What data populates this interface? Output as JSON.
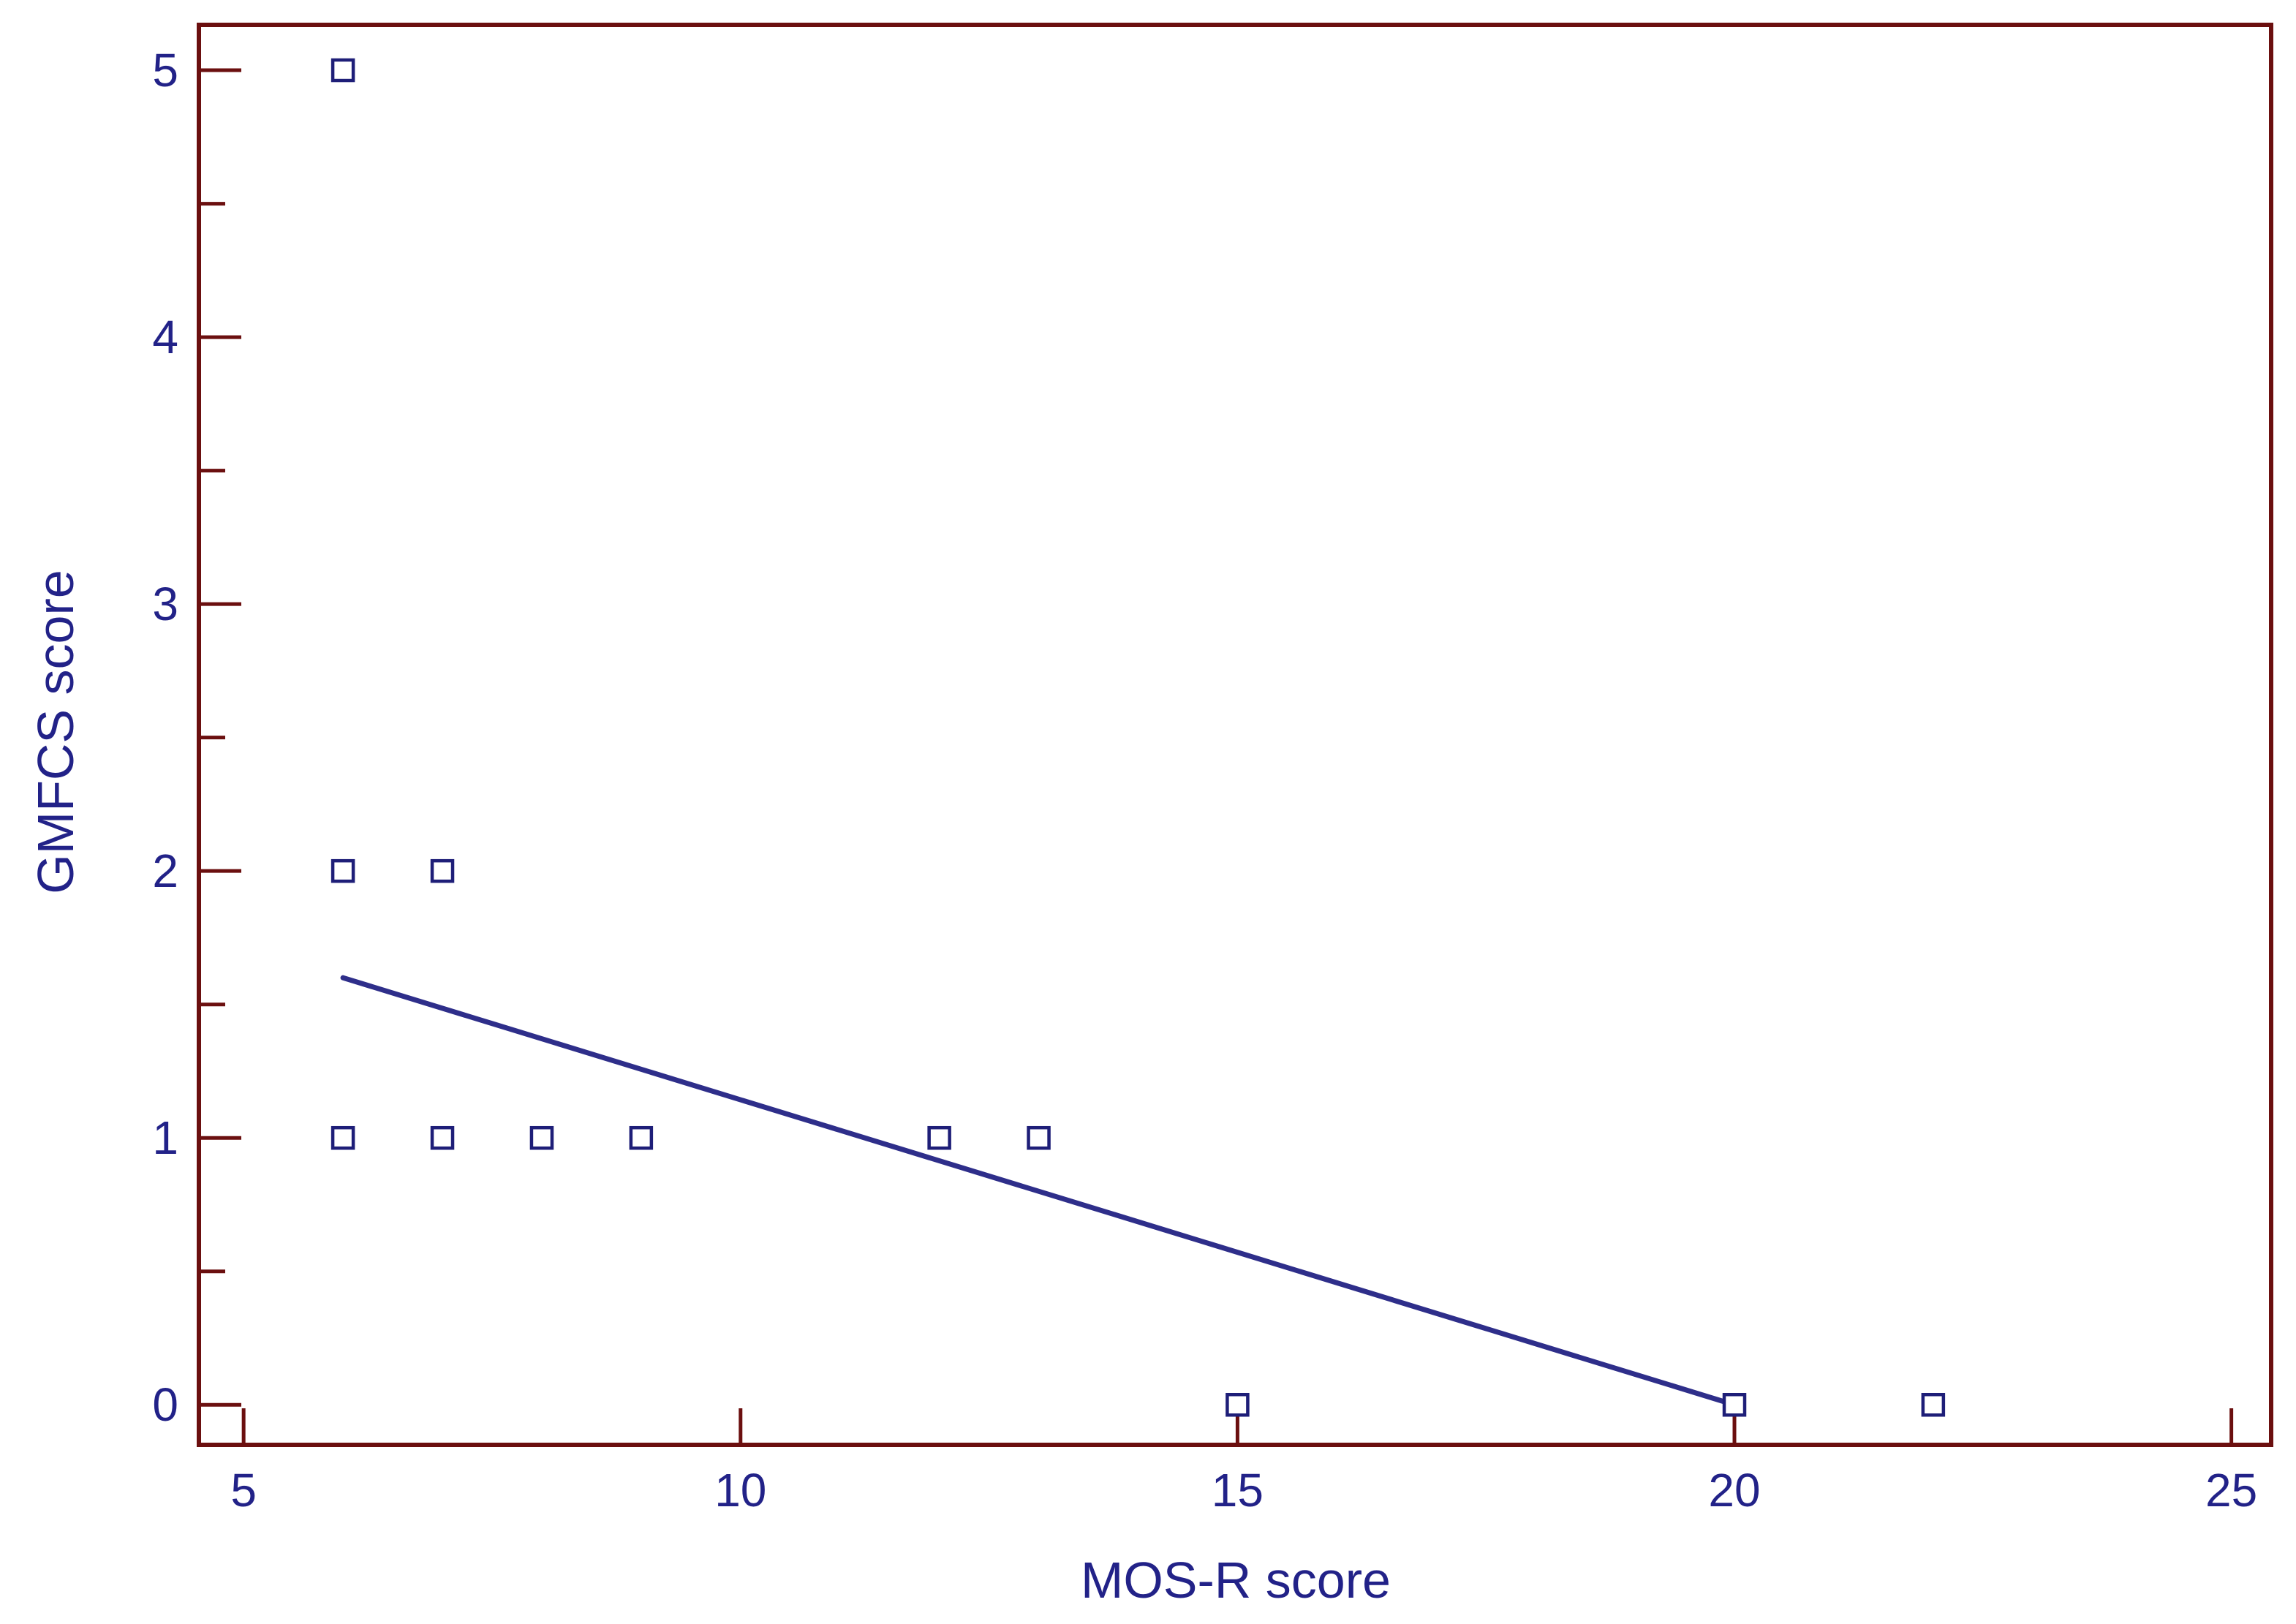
{
  "chart_data": {
    "type": "scatter",
    "title": "",
    "xlabel": "MOS-R score",
    "ylabel": "GMFCS score",
    "xlim": [
      4.55,
      25.4
    ],
    "ylim": [
      -0.15,
      5.17
    ],
    "x_ticks": [
      5,
      10,
      15,
      20,
      25
    ],
    "y_ticks": [
      0,
      1,
      2,
      3,
      4,
      5
    ],
    "y_minor_ticks": [
      0.5,
      1.5,
      2.5,
      3.5,
      4.5
    ],
    "grid": false,
    "legend": "none",
    "points": [
      {
        "x": 6,
        "y": 5
      },
      {
        "x": 6,
        "y": 2
      },
      {
        "x": 7,
        "y": 2
      },
      {
        "x": 6,
        "y": 1
      },
      {
        "x": 7,
        "y": 1
      },
      {
        "x": 8,
        "y": 1
      },
      {
        "x": 9,
        "y": 1
      },
      {
        "x": 12,
        "y": 1
      },
      {
        "x": 13,
        "y": 1
      },
      {
        "x": 15,
        "y": 0
      },
      {
        "x": 20,
        "y": 0
      },
      {
        "x": 22,
        "y": 0
      }
    ],
    "regression_line": {
      "x": [
        6,
        20
      ],
      "y": [
        1.6,
        0
      ]
    },
    "colors": {
      "frame": "#6b0f0f",
      "marker": "#1e1e78",
      "line": "#2e2e8a",
      "text": "#222288"
    }
  }
}
